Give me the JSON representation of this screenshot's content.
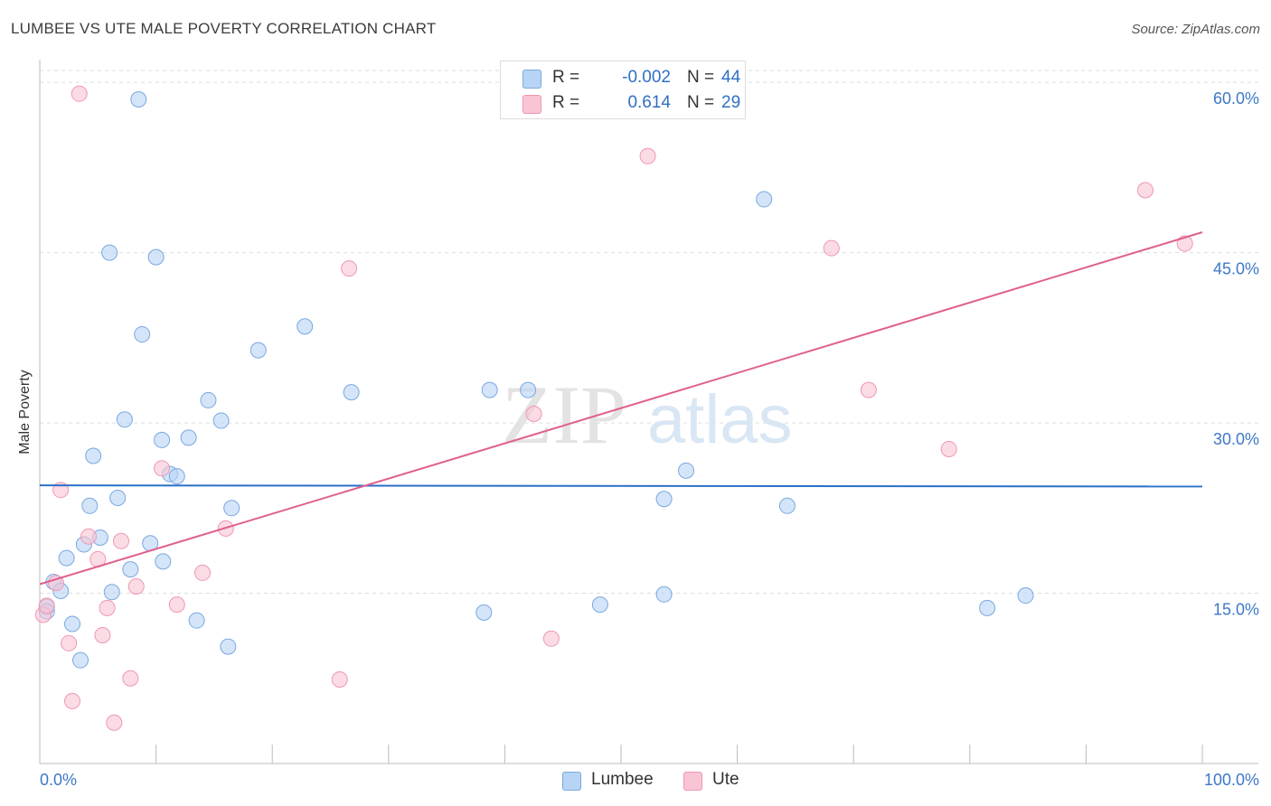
{
  "header": {
    "title": "LUMBEE VS UTE MALE POVERTY CORRELATION CHART",
    "source": "Source: ZipAtlas.com"
  },
  "watermark": {
    "zip": "ZIP",
    "atlas": "atlas"
  },
  "legend": {
    "rows": [
      {
        "name": "Lumbee",
        "r_label": "R =",
        "r_value": "-0.002",
        "n_label": "N =",
        "n_value": "44"
      },
      {
        "name": "Ute",
        "r_label": "R =",
        "r_value": "0.614",
        "n_label": "N =",
        "n_value": "29"
      }
    ]
  },
  "bottom_legend": {
    "lumbee": "Lumbee",
    "ute": "Ute"
  },
  "colors": {
    "lumbee_fill": "#b8d4f5",
    "lumbee_stroke": "#7aa8e0",
    "lumbee_line": "#2b6fc8",
    "ute_fill": "#f9c4d4",
    "ute_stroke": "#ef97b3",
    "ute_line": "#e0608c",
    "tick_label": "#3d78c7",
    "grid": "#dddddd"
  },
  "chart_data": {
    "type": "scatter",
    "title": "LUMBEE VS UTE MALE POVERTY CORRELATION CHART",
    "xlabel": "",
    "ylabel": "Male Poverty",
    "xlim": [
      0,
      100
    ],
    "ylim": [
      0,
      62
    ],
    "x_tick_labels": [
      "0.0%",
      "100.0%"
    ],
    "y_ticks": [
      15,
      30,
      45,
      60
    ],
    "y_tick_labels": [
      "15.0%",
      "30.0%",
      "45.0%",
      "60.0%"
    ],
    "series": [
      {
        "name": "Lumbee",
        "r": -0.002,
        "n": 44,
        "trend": {
          "x": [
            0,
            100
          ],
          "y": [
            24.5,
            24.4
          ]
        },
        "points": [
          [
            0.6,
            13.8
          ],
          [
            0.6,
            13.4
          ],
          [
            1.2,
            16.0
          ],
          [
            1.8,
            15.2
          ],
          [
            2.3,
            18.1
          ],
          [
            2.8,
            12.3
          ],
          [
            3.5,
            9.1
          ],
          [
            3.8,
            19.3
          ],
          [
            4.3,
            22.7
          ],
          [
            4.6,
            27.1
          ],
          [
            5.2,
            19.9
          ],
          [
            6.2,
            15.1
          ],
          [
            6.7,
            23.4
          ],
          [
            7.3,
            30.3
          ],
          [
            7.8,
            17.1
          ],
          [
            8.5,
            58.5
          ],
          [
            8.8,
            37.8
          ],
          [
            9.5,
            19.4
          ],
          [
            10.0,
            44.6
          ],
          [
            10.5,
            28.5
          ],
          [
            10.6,
            17.8
          ],
          [
            11.2,
            25.5
          ],
          [
            11.8,
            25.3
          ],
          [
            12.8,
            28.7
          ],
          [
            13.5,
            12.6
          ],
          [
            14.5,
            32.0
          ],
          [
            15.6,
            30.2
          ],
          [
            16.2,
            10.3
          ],
          [
            16.5,
            22.5
          ],
          [
            18.8,
            36.4
          ],
          [
            6.0,
            45.0
          ],
          [
            22.8,
            38.5
          ],
          [
            26.8,
            32.7
          ],
          [
            38.2,
            13.3
          ],
          [
            38.7,
            32.9
          ],
          [
            42.0,
            32.9
          ],
          [
            48.2,
            14.0
          ],
          [
            53.7,
            14.9
          ],
          [
            53.7,
            23.3
          ],
          [
            55.6,
            25.8
          ],
          [
            62.3,
            49.7
          ],
          [
            64.3,
            22.7
          ],
          [
            81.5,
            13.7
          ],
          [
            84.8,
            14.8
          ]
        ]
      },
      {
        "name": "Ute",
        "r": 0.614,
        "n": 29,
        "trend": {
          "x": [
            0,
            100
          ],
          "y": [
            15.8,
            46.8
          ]
        },
        "points": [
          [
            0.3,
            13.1
          ],
          [
            0.6,
            13.9
          ],
          [
            1.4,
            15.9
          ],
          [
            1.8,
            24.1
          ],
          [
            2.5,
            10.6
          ],
          [
            2.8,
            5.5
          ],
          [
            3.4,
            59.0
          ],
          [
            4.2,
            20.0
          ],
          [
            5.0,
            18.0
          ],
          [
            5.4,
            11.3
          ],
          [
            5.8,
            13.7
          ],
          [
            6.4,
            3.6
          ],
          [
            7.0,
            19.6
          ],
          [
            7.8,
            7.5
          ],
          [
            8.3,
            15.6
          ],
          [
            10.5,
            26.0
          ],
          [
            11.8,
            14.0
          ],
          [
            14.0,
            16.8
          ],
          [
            16.0,
            20.7
          ],
          [
            25.8,
            7.4
          ],
          [
            26.6,
            43.6
          ],
          [
            42.5,
            30.8
          ],
          [
            44.0,
            11.0
          ],
          [
            52.3,
            53.5
          ],
          [
            68.1,
            45.4
          ],
          [
            71.3,
            32.9
          ],
          [
            78.2,
            27.7
          ],
          [
            95.1,
            50.5
          ],
          [
            98.5,
            45.8
          ]
        ]
      }
    ]
  }
}
